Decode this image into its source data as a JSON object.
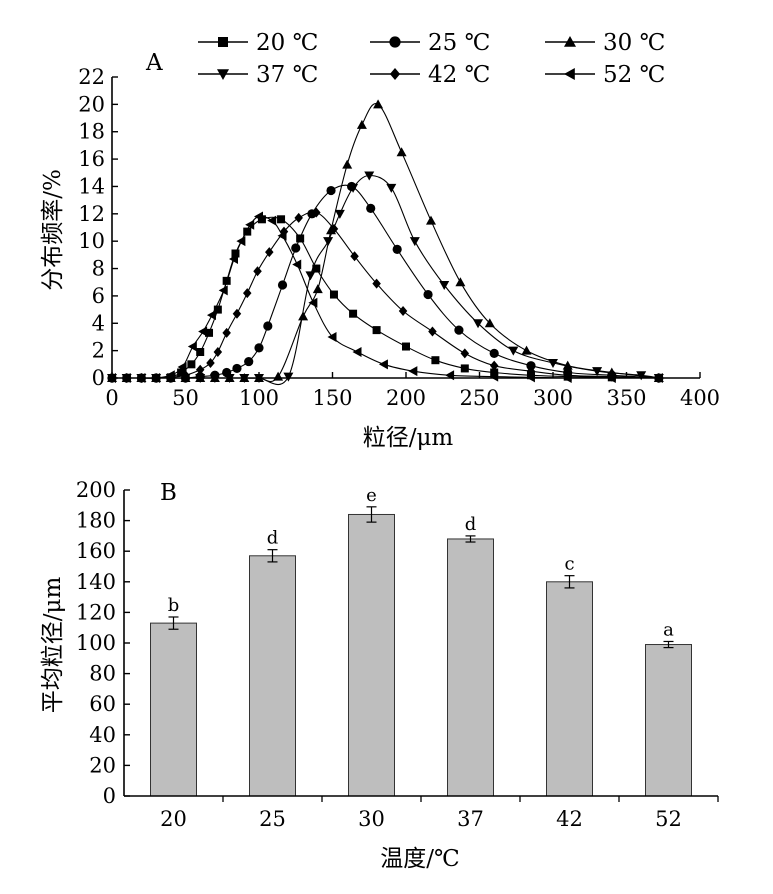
{
  "chart_data": [
    {
      "type": "line",
      "panel": "A",
      "xlabel": "粒径/μm",
      "ylabel": "分布频率/%",
      "xlim": [
        0,
        400
      ],
      "ylim": [
        0,
        22
      ],
      "xticks": [
        0,
        50,
        100,
        150,
        200,
        250,
        300,
        350,
        400
      ],
      "yticks": [
        0,
        2,
        4,
        6,
        8,
        10,
        12,
        14,
        16,
        18,
        20,
        22
      ],
      "grid": false,
      "legend_position": "top",
      "series": [
        {
          "name": "20 ℃",
          "marker": "square",
          "points": [
            [
              0,
              0
            ],
            [
              10,
              0
            ],
            [
              20,
              0
            ],
            [
              30,
              0
            ],
            [
              40,
              0.05
            ],
            [
              47,
              0.4
            ],
            [
              54,
              1.0
            ],
            [
              60,
              1.9
            ],
            [
              66,
              3.3
            ],
            [
              72,
              5.0
            ],
            [
              78,
              7.1
            ],
            [
              84,
              9.1
            ],
            [
              92,
              10.7
            ],
            [
              102,
              11.6
            ],
            [
              115,
              11.6
            ],
            [
              128,
              10.2
            ],
            [
              139,
              8.0
            ],
            [
              151,
              6.1
            ],
            [
              164,
              4.7
            ],
            [
              180,
              3.5
            ],
            [
              200,
              2.3
            ],
            [
              220,
              1.3
            ],
            [
              240,
              0.7
            ],
            [
              260,
              0.4
            ],
            [
              285,
              0.2
            ],
            [
              310,
              0.1
            ],
            [
              340,
              0.05
            ],
            [
              372,
              0
            ]
          ]
        },
        {
          "name": "25 ℃",
          "marker": "circle",
          "points": [
            [
              0,
              0
            ],
            [
              10,
              0
            ],
            [
              20,
              0
            ],
            [
              30,
              0
            ],
            [
              40,
              0
            ],
            [
              50,
              0
            ],
            [
              60,
              0.1
            ],
            [
              70,
              0.2
            ],
            [
              78,
              0.4
            ],
            [
              85,
              0.7
            ],
            [
              93,
              1.2
            ],
            [
              100,
              2.2
            ],
            [
              106,
              3.8
            ],
            [
              116,
              6.8
            ],
            [
              125,
              9.5
            ],
            [
              136,
              12.0
            ],
            [
              149,
              13.7
            ],
            [
              163,
              14.0
            ],
            [
              176,
              12.4
            ],
            [
              194,
              9.4
            ],
            [
              215,
              6.1
            ],
            [
              236,
              3.5
            ],
            [
              260,
              1.8
            ],
            [
              285,
              0.9
            ],
            [
              310,
              0.4
            ],
            [
              340,
              0.2
            ],
            [
              372,
              0
            ]
          ]
        },
        {
          "name": "30 ℃",
          "marker": "triangle-up",
          "points": [
            [
              0,
              0
            ],
            [
              10,
              0
            ],
            [
              20,
              0
            ],
            [
              30,
              0
            ],
            [
              40,
              0
            ],
            [
              50,
              0
            ],
            [
              60,
              0
            ],
            [
              70,
              0
            ],
            [
              80,
              0
            ],
            [
              90,
              0
            ],
            [
              100,
              0
            ],
            [
              113,
              0.1
            ],
            [
              130,
              4.5
            ],
            [
              140,
              6.5
            ],
            [
              149,
              10.8
            ],
            [
              160,
              15.6
            ],
            [
              170,
              18.5
            ],
            [
              181,
              20.0
            ],
            [
              197,
              16.5
            ],
            [
              217,
              11.5
            ],
            [
              237,
              7.0
            ],
            [
              257,
              4.0
            ],
            [
              282,
              2.0
            ],
            [
              310,
              0.9
            ],
            [
              340,
              0.4
            ],
            [
              372,
              0
            ]
          ]
        },
        {
          "name": "37 ℃",
          "marker": "triangle-down",
          "points": [
            [
              0,
              0
            ],
            [
              10,
              0
            ],
            [
              20,
              0
            ],
            [
              30,
              0
            ],
            [
              40,
              0
            ],
            [
              50,
              0
            ],
            [
              60,
              0
            ],
            [
              70,
              0
            ],
            [
              80,
              0
            ],
            [
              90,
              0
            ],
            [
              100,
              0
            ],
            [
              120,
              0.1
            ],
            [
              135,
              7.5
            ],
            [
              147,
              10.0
            ],
            [
              155,
              12.0
            ],
            [
              164,
              13.9
            ],
            [
              175,
              14.8
            ],
            [
              190,
              13.9
            ],
            [
              206,
              10.0
            ],
            [
              226,
              6.8
            ],
            [
              249,
              4.0
            ],
            [
              273,
              2.0
            ],
            [
              300,
              1.1
            ],
            [
              330,
              0.5
            ],
            [
              360,
              0.2
            ],
            [
              372,
              0
            ]
          ]
        },
        {
          "name": "42 ℃",
          "marker": "diamond",
          "points": [
            [
              0,
              0
            ],
            [
              10,
              0
            ],
            [
              20,
              0
            ],
            [
              30,
              0
            ],
            [
              40,
              0.05
            ],
            [
              50,
              0.2
            ],
            [
              60,
              0.6
            ],
            [
              67,
              1.1
            ],
            [
              72,
              1.9
            ],
            [
              78,
              3.3
            ],
            [
              85,
              4.7
            ],
            [
              92,
              6.2
            ],
            [
              99,
              7.8
            ],
            [
              107,
              9.2
            ],
            [
              117,
              10.7
            ],
            [
              127,
              11.7
            ],
            [
              139,
              12.1
            ],
            [
              151,
              10.9
            ],
            [
              165,
              8.9
            ],
            [
              180,
              6.9
            ],
            [
              198,
              4.9
            ],
            [
              218,
              3.4
            ],
            [
              240,
              1.8
            ],
            [
              260,
              0.9
            ],
            [
              285,
              0.5
            ],
            [
              310,
              0.2
            ],
            [
              340,
              0.1
            ],
            [
              372,
              0
            ]
          ]
        },
        {
          "name": "52 ℃",
          "marker": "triangle-left",
          "points": [
            [
              0,
              0
            ],
            [
              10,
              0
            ],
            [
              20,
              0
            ],
            [
              30,
              0
            ],
            [
              40,
              0.2
            ],
            [
              48,
              0.8
            ],
            [
              55,
              2.3
            ],
            [
              62,
              3.4
            ],
            [
              68,
              4.6
            ],
            [
              76,
              6.4
            ],
            [
              83,
              8.7
            ],
            [
              88,
              10.0
            ],
            [
              94,
              11.2
            ],
            [
              100,
              11.8
            ],
            [
              109,
              11.5
            ],
            [
              116,
              10.4
            ],
            [
              126,
              8.3
            ],
            [
              137,
              5.5
            ],
            [
              150,
              3.0
            ],
            [
              167,
              1.9
            ],
            [
              185,
              1.0
            ],
            [
              205,
              0.5
            ],
            [
              230,
              0.2
            ],
            [
              260,
              0.1
            ],
            [
              285,
              0.05
            ],
            [
              310,
              0
            ],
            [
              340,
              0
            ],
            [
              372,
              0
            ]
          ]
        }
      ]
    },
    {
      "type": "bar",
      "panel": "B",
      "xlabel": "温度/℃",
      "ylabel": "平均粒径/μm",
      "ylim": [
        0,
        200
      ],
      "yticks": [
        0,
        20,
        40,
        60,
        80,
        100,
        120,
        140,
        160,
        180,
        200
      ],
      "grid": false,
      "bar_color": "#bebebe",
      "categories": [
        "20",
        "25",
        "30",
        "37",
        "42",
        "52"
      ],
      "values": [
        113,
        157,
        184,
        168,
        140,
        99
      ],
      "errors": [
        4,
        4,
        5,
        2,
        4,
        2
      ],
      "significance": [
        "b",
        "d",
        "e",
        "d",
        "c",
        "a"
      ]
    }
  ]
}
